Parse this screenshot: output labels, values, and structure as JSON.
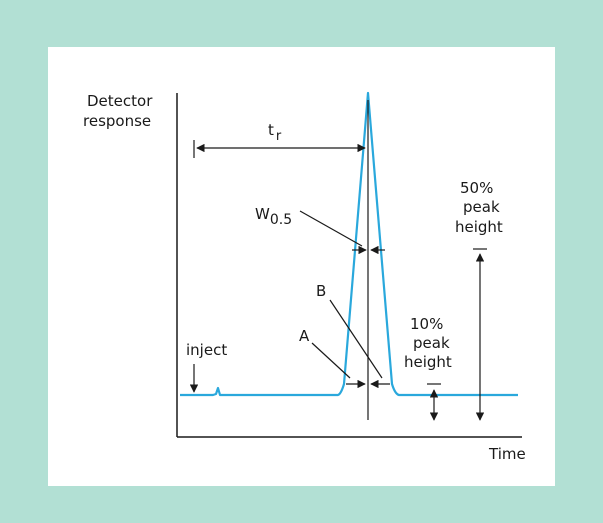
{
  "diagram": {
    "y_axis_label_line1": "Detector",
    "y_axis_label_line2": "response",
    "x_axis_label": "Time",
    "retention_time_main": "t",
    "retention_time_sub": "r",
    "half_width_main": "W",
    "half_width_sub": "0.5",
    "inject_label": "inject",
    "label_a": "A",
    "label_b": "B",
    "fifty_line1": "50%",
    "fifty_line2": "peak",
    "fifty_line3": "height",
    "ten_line1": "10%",
    "ten_line2": "peak",
    "ten_line3": "height",
    "colors": {
      "background": "#b2e0d4",
      "panel": "#ffffff",
      "trace": "#2aa8dc",
      "lines": "#1a1a1a"
    }
  }
}
